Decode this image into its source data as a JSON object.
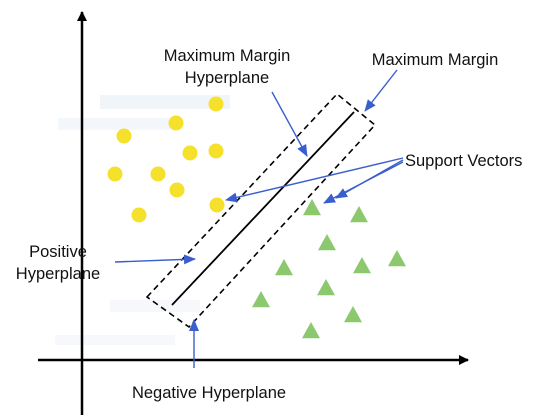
{
  "labels": {
    "max_margin_hyperplane_line1": "Maximum Margin",
    "max_margin_hyperplane_line2": "Hyperplane",
    "max_margin": "Maximum Margin",
    "support_vectors": "Support Vectors",
    "positive_line1": "Positive",
    "positive_line2": "Hyperplane",
    "negative": "Negative Hyperplane"
  },
  "colors": {
    "circle": "#f5e12b",
    "triangle": "#8cc96e",
    "arrow": "#3a5fcd",
    "axis": "#000000"
  },
  "icons": {
    "circle_class": "yellow-circle",
    "triangle_class": "green-triangle"
  }
}
